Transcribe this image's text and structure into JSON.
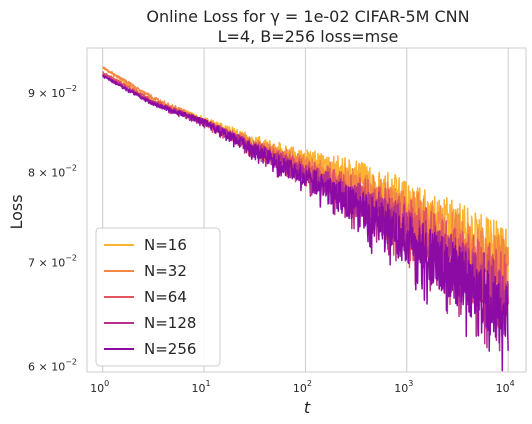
{
  "chart_data": {
    "type": "line",
    "title_lines": [
      "Online Loss for γ = 1e-02 CIFAR-5M CNN",
      "L=4, B=256 loss=mse"
    ],
    "xlabel": "t",
    "ylabel": "Loss",
    "x_scale": "log",
    "y_scale": "log",
    "xlim": [
      0.7,
      15000
    ],
    "ylim": [
      0.0595,
      0.0962
    ],
    "x_ticks": [
      {
        "value": 1,
        "base": "10",
        "exp": "0"
      },
      {
        "value": 10,
        "base": "10",
        "exp": "1"
      },
      {
        "value": 100,
        "base": "10",
        "exp": "2"
      },
      {
        "value": 1000,
        "base": "10",
        "exp": "3"
      },
      {
        "value": 10000,
        "base": "10",
        "exp": "4"
      }
    ],
    "y_ticks": [
      {
        "value": 0.06,
        "mant": "6",
        "base": "10",
        "exp": "−2"
      },
      {
        "value": 0.07,
        "mant": "7",
        "base": "10",
        "exp": "−2"
      },
      {
        "value": 0.08,
        "mant": "8",
        "base": "10",
        "exp": "−2"
      },
      {
        "value": 0.09,
        "mant": "9",
        "base": "10",
        "exp": "−2"
      }
    ],
    "grid": true,
    "legend_position": "lower-left",
    "series": [
      {
        "name": "N=16",
        "color": "#fbb331",
        "points": [
          [
            1,
            0.0935
          ],
          [
            3,
            0.089
          ],
          [
            10,
            0.0865
          ],
          [
            30,
            0.0838
          ],
          [
            100,
            0.0816
          ],
          [
            300,
            0.0796
          ],
          [
            1000,
            0.0765
          ],
          [
            3000,
            0.0735
          ],
          [
            10000,
            0.0705
          ]
        ],
        "noise": [
          [
            1,
            0.0001
          ],
          [
            10,
            0.0004
          ],
          [
            30,
            0.0008
          ],
          [
            100,
            0.0012
          ],
          [
            300,
            0.002
          ],
          [
            1000,
            0.0028
          ],
          [
            3000,
            0.0032
          ],
          [
            10000,
            0.0034
          ]
        ]
      },
      {
        "name": "N=32",
        "color": "#f48847",
        "points": [
          [
            1,
            0.0935
          ],
          [
            3,
            0.0895
          ],
          [
            10,
            0.0862
          ],
          [
            30,
            0.0835
          ],
          [
            100,
            0.0808
          ],
          [
            300,
            0.0785
          ],
          [
            1000,
            0.0755
          ],
          [
            3000,
            0.0722
          ],
          [
            10000,
            0.069
          ]
        ],
        "noise": [
          [
            1,
            0.0001
          ],
          [
            10,
            0.0004
          ],
          [
            30,
            0.0008
          ],
          [
            100,
            0.0012
          ],
          [
            300,
            0.002
          ],
          [
            1000,
            0.0028
          ],
          [
            3000,
            0.0032
          ],
          [
            10000,
            0.0034
          ]
        ]
      },
      {
        "name": "N=64",
        "color": "#e1555e",
        "points": [
          [
            1,
            0.0928
          ],
          [
            3,
            0.089
          ],
          [
            10,
            0.0862
          ],
          [
            30,
            0.0832
          ],
          [
            100,
            0.0803
          ],
          [
            300,
            0.0778
          ],
          [
            1000,
            0.0745
          ],
          [
            3000,
            0.071
          ],
          [
            10000,
            0.0676
          ]
        ],
        "noise": [
          [
            1,
            0.0001
          ],
          [
            10,
            0.0004
          ],
          [
            30,
            0.0008
          ],
          [
            100,
            0.0012
          ],
          [
            300,
            0.002
          ],
          [
            1000,
            0.0028
          ],
          [
            3000,
            0.0032
          ],
          [
            10000,
            0.0034
          ]
        ]
      },
      {
        "name": "N=128",
        "color": "#b5328c",
        "points": [
          [
            1,
            0.0925
          ],
          [
            3,
            0.0888
          ],
          [
            10,
            0.0862
          ],
          [
            30,
            0.083
          ],
          [
            100,
            0.0798
          ],
          [
            300,
            0.077
          ],
          [
            1000,
            0.0735
          ],
          [
            3000,
            0.0698
          ],
          [
            10000,
            0.066
          ]
        ],
        "noise": [
          [
            1,
            0.0001
          ],
          [
            10,
            0.0004
          ],
          [
            30,
            0.0008
          ],
          [
            100,
            0.0012
          ],
          [
            300,
            0.002
          ],
          [
            1000,
            0.0028
          ],
          [
            3000,
            0.0032
          ],
          [
            10000,
            0.0034
          ]
        ]
      },
      {
        "name": "N=256",
        "color": "#8d0ba5",
        "points": [
          [
            1,
            0.0923
          ],
          [
            3,
            0.0887
          ],
          [
            10,
            0.0862
          ],
          [
            30,
            0.0828
          ],
          [
            100,
            0.0795
          ],
          [
            300,
            0.0763
          ],
          [
            1000,
            0.0725
          ],
          [
            3000,
            0.0688
          ],
          [
            10000,
            0.0648
          ]
        ],
        "noise": [
          [
            1,
            0.0001
          ],
          [
            10,
            0.0004
          ],
          [
            30,
            0.0008
          ],
          [
            100,
            0.0012
          ],
          [
            300,
            0.002
          ],
          [
            1000,
            0.0028
          ],
          [
            3000,
            0.0032
          ],
          [
            10000,
            0.0034
          ]
        ]
      }
    ]
  }
}
